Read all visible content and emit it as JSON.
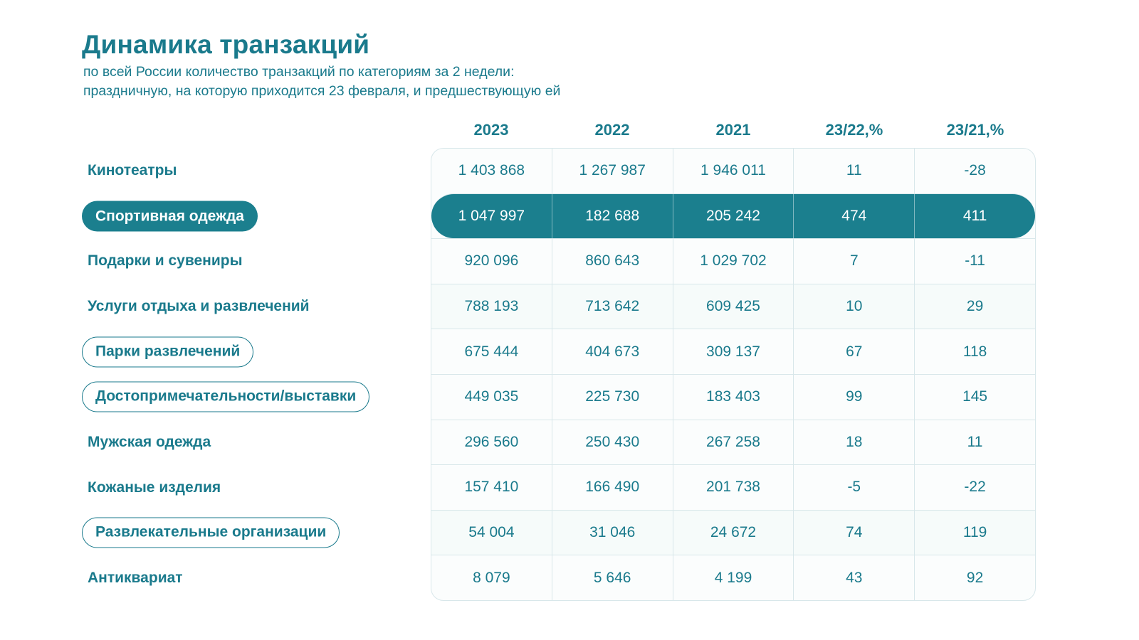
{
  "header": {
    "title": "Динамика транзакций",
    "subtitle_line1": "по всей России количество транзакций по категориям за 2 недели:",
    "subtitle_line2": "праздничную, на которую приходится 23 февраля, и предшествующую ей"
  },
  "colors": {
    "teal_text": "#1a7a8c",
    "highlight_fill": "#1b7f8e",
    "grid_line": "#d8e7ea",
    "grid_background": "#fbfdfd"
  },
  "table": {
    "columns": [
      "2023",
      "2022",
      "2021",
      "23/22,%",
      "23/21,%"
    ],
    "rows": [
      {
        "category": "Кинотеатры",
        "style": "plain",
        "highlight": false,
        "values": [
          "1 403 868",
          "1 267 987",
          "1 946 011",
          "11",
          "-28"
        ]
      },
      {
        "category": "Спортивная одежда",
        "style": "filled",
        "highlight": true,
        "values": [
          "1 047 997",
          "182 688",
          "205 242",
          "474",
          "411"
        ]
      },
      {
        "category": "Подарки и сувениры",
        "style": "plain",
        "highlight": false,
        "values": [
          "920 096",
          "860 643",
          "1 029 702",
          "7",
          "-11"
        ]
      },
      {
        "category": "Услуги отдыха и развлечений",
        "style": "plain",
        "highlight": false,
        "values": [
          "788 193",
          "713 642",
          "609 425",
          "10",
          "29"
        ]
      },
      {
        "category": "Парки развлечений",
        "style": "outlined",
        "highlight": false,
        "values": [
          "675 444",
          "404 673",
          "309 137",
          "67",
          "118"
        ]
      },
      {
        "category": "Достопримечательности/выставки",
        "style": "outlined",
        "highlight": false,
        "values": [
          "449 035",
          "225 730",
          "183 403",
          "99",
          "145"
        ]
      },
      {
        "category": "Мужская одежда",
        "style": "plain",
        "highlight": false,
        "values": [
          "296 560",
          "250 430",
          "267 258",
          "18",
          "11"
        ]
      },
      {
        "category": "Кожаные изделия",
        "style": "plain",
        "highlight": false,
        "values": [
          "157 410",
          "166 490",
          "201 738",
          "-5",
          "-22"
        ]
      },
      {
        "category": "Развлекательные организации",
        "style": "outlined",
        "highlight": false,
        "values": [
          "54 004",
          "31 046",
          "24 672",
          "74",
          "119"
        ]
      },
      {
        "category": "Антиквариат",
        "style": "plain",
        "highlight": false,
        "values": [
          "8 079",
          "5 646",
          "4 199",
          "43",
          "92"
        ]
      }
    ]
  },
  "chart_data": {
    "type": "table",
    "title": "Динамика транзакций",
    "subtitle": "по всей России количество транзакций по категориям за 2 недели: праздничную, на которую приходится 23 февраля, и предшествующую ей",
    "columns": [
      "2023",
      "2022",
      "2021",
      "23/22,%",
      "23/21,%"
    ],
    "row_labels": [
      "Кинотеатры",
      "Спортивная одежда",
      "Подарки и сувениры",
      "Услуги отдыха и развлечений",
      "Парки развлечений",
      "Достопримечательности/выставки",
      "Мужская одежда",
      "Кожаные изделия",
      "Развлекательные организации",
      "Антиквариат"
    ],
    "values": [
      [
        1403868,
        1267987,
        1946011,
        11,
        -28
      ],
      [
        1047997,
        182688,
        205242,
        474,
        411
      ],
      [
        920096,
        860643,
        1029702,
        7,
        -11
      ],
      [
        788193,
        713642,
        609425,
        10,
        29
      ],
      [
        675444,
        404673,
        309137,
        67,
        118
      ],
      [
        449035,
        225730,
        183403,
        99,
        145
      ],
      [
        296560,
        250430,
        267258,
        18,
        11
      ],
      [
        157410,
        166490,
        201738,
        -5,
        -22
      ],
      [
        54004,
        31046,
        24672,
        74,
        119
      ],
      [
        8079,
        5646,
        4199,
        43,
        92
      ]
    ],
    "highlighted_row": "Спортивная одежда",
    "outlined_rows": [
      "Парки развлечений",
      "Достопримечательности/выставки",
      "Развлекательные организации"
    ]
  }
}
